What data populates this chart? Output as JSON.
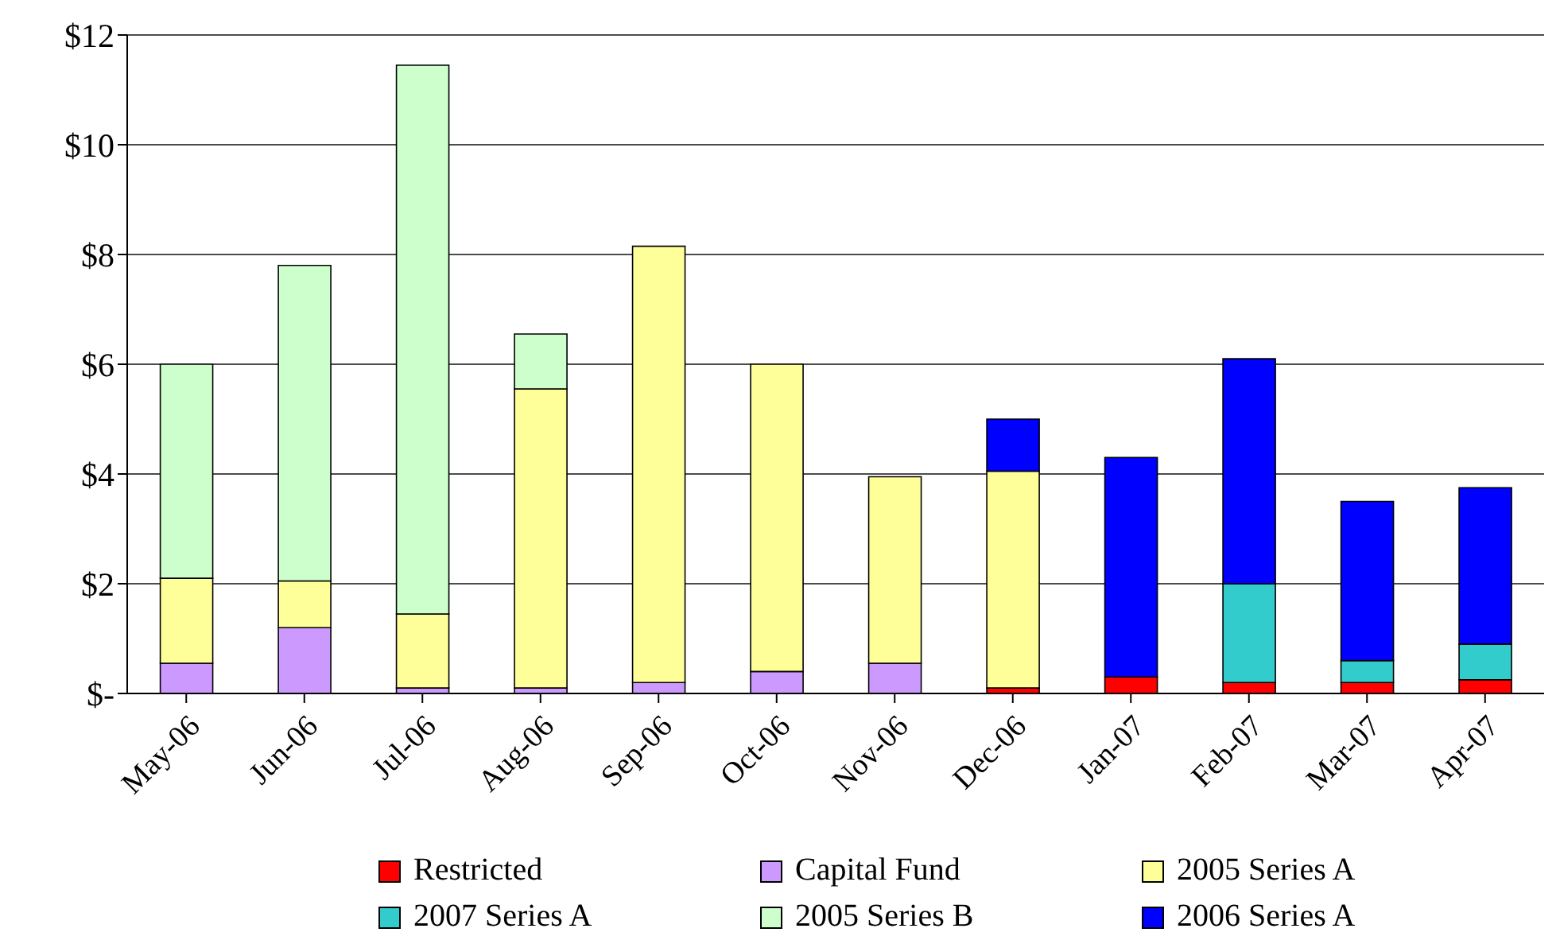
{
  "chart_data": {
    "type": "bar",
    "stacked": true,
    "categories": [
      "May-06",
      "Jun-06",
      "Jul-06",
      "Aug-06",
      "Sep-06",
      "Oct-06",
      "Nov-06",
      "Dec-06",
      "Jan-07",
      "Feb-07",
      "Mar-07",
      "Apr-07"
    ],
    "series": [
      {
        "name": "Restricted",
        "color": "#ff0000",
        "values": [
          0,
          0,
          0,
          0,
          0,
          0,
          0,
          0.1,
          0.3,
          0.2,
          0.2,
          0.25
        ]
      },
      {
        "name": "Capital Fund",
        "color": "#cc99ff",
        "values": [
          0.55,
          1.2,
          0.1,
          0.1,
          0.2,
          0.4,
          0.55,
          0,
          0,
          0,
          0,
          0
        ]
      },
      {
        "name": "2005 Series A",
        "color": "#ffff99",
        "values": [
          1.55,
          0.85,
          1.35,
          5.45,
          7.95,
          5.6,
          3.4,
          3.95,
          0,
          0,
          0,
          0
        ]
      },
      {
        "name": "2007 Series A",
        "color": "#33cccc",
        "values": [
          0,
          0,
          0,
          0,
          0,
          0,
          0,
          0,
          0,
          1.8,
          0.4,
          0.65
        ]
      },
      {
        "name": "2005 Series B",
        "color": "#ccffcc",
        "values": [
          3.9,
          5.75,
          10.0,
          1.0,
          0,
          0,
          0,
          0,
          0,
          0,
          0,
          0
        ]
      },
      {
        "name": "2006 Series A",
        "color": "#0000ff",
        "values": [
          0,
          0,
          0,
          0,
          0,
          0,
          0,
          0.95,
          4.0,
          4.1,
          2.9,
          2.85
        ]
      }
    ],
    "ylim": [
      0,
      12
    ],
    "yticks": [
      {
        "value": 0,
        "label": "$-"
      },
      {
        "value": 2,
        "label": "$2"
      },
      {
        "value": 4,
        "label": "$4"
      },
      {
        "value": 6,
        "label": "$6"
      },
      {
        "value": 8,
        "label": "$8"
      },
      {
        "value": 10,
        "label": "$10"
      },
      {
        "value": 12,
        "label": "$12"
      }
    ],
    "grid": "y",
    "legend": "bottom"
  }
}
